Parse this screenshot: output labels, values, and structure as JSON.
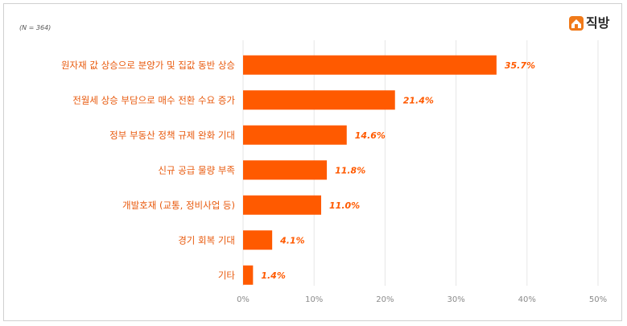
{
  "note": "(N = 364)",
  "brand": {
    "name": "직방",
    "icon": "house-icon",
    "color": "#f07a1a"
  },
  "chart_data": {
    "type": "bar",
    "orientation": "horizontal",
    "categories": [
      "원자재 값 상승으로 분양가 및 집값 동반 상승",
      "전월세 상승 부담으로 매수 전환 수요 증가",
      "정부 부동산 정책 규제 완화 기대",
      "신규 공급 물량 부족",
      "개발호재 (교통, 정비사업 등)",
      "경기 회복 기대",
      "기타"
    ],
    "values": [
      35.7,
      21.4,
      14.6,
      11.8,
      11.0,
      4.1,
      1.4
    ],
    "value_labels": [
      "35.7%",
      "21.4%",
      "14.6%",
      "11.8%",
      "11.0%",
      "4.1%",
      "1.4%"
    ],
    "x_ticks": [
      "0%",
      "10%",
      "20%",
      "30%",
      "40%",
      "50%"
    ],
    "xlim": [
      0,
      50
    ],
    "grid": true,
    "colors": {
      "bar": "#ff5a00",
      "category_text": "#e8590c",
      "value_text": "#ff5a00",
      "grid": "#e6e6e6",
      "tick_text": "#8a8a8a"
    }
  }
}
